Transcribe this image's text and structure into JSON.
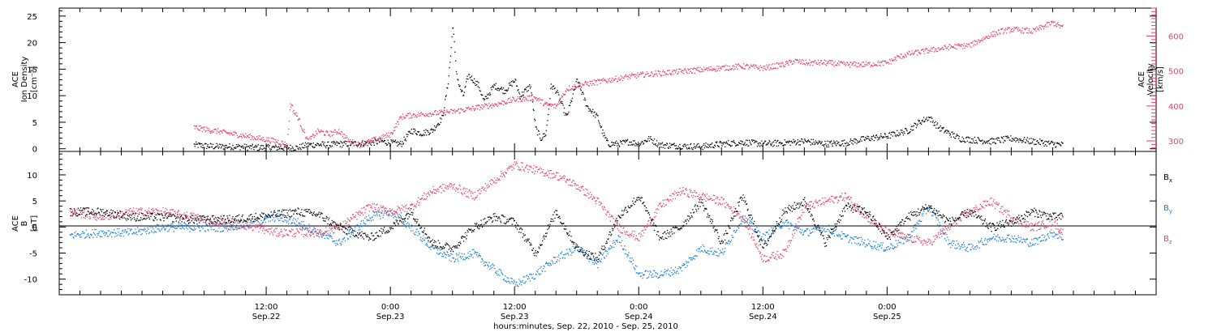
{
  "colors": {
    "axis": "#000000",
    "density": "#000000",
    "velocity": "#e8406a",
    "bx": "#000000",
    "by": "#1a7fd8",
    "bz": "#e8406a"
  },
  "chart_data": [
    {
      "type": "scatter",
      "panel": "plasma",
      "ylabel_left": [
        "ACE",
        "Ion Density",
        "[cm⁻³]"
      ],
      "ylabel_right": [
        "ACE",
        "Velocity",
        "[km/s]"
      ],
      "ylim_left": [
        -0.5,
        26.5
      ],
      "ylim_right": [
        270,
        680
      ],
      "left_ticks": [
        "0",
        "5",
        "10",
        "15",
        "20",
        "25"
      ],
      "right_ticks": [
        "300",
        "400",
        "500",
        "600"
      ],
      "x_unit": "hours since Sep 22 00:00 UT",
      "series": [
        {
          "key": "density",
          "x": [
            5,
            7,
            9,
            11,
            13,
            14,
            15,
            16,
            17,
            18,
            19,
            20,
            22,
            23,
            24,
            25,
            26,
            27,
            28,
            29,
            29.5,
            29.8,
            30,
            30.3,
            30.6,
            31,
            31.5,
            32,
            32.5,
            33,
            34,
            35,
            36,
            36.5,
            37,
            37.5,
            38,
            38.5,
            39,
            39.5,
            40,
            41,
            42,
            43,
            44,
            44.5,
            45,
            46,
            47,
            48,
            49,
            50,
            52,
            54,
            56,
            58,
            60,
            62,
            64,
            66,
            68,
            70,
            72,
            74,
            75,
            76,
            77,
            78,
            79,
            80,
            82,
            84,
            86,
            88,
            89
          ],
          "y": [
            0.8,
            0.5,
            0.5,
            0.3,
            0.3,
            0.3,
            0.3,
            0.8,
            0.9,
            0.8,
            1.0,
            1.0,
            1.2,
            1.5,
            1.2,
            1.0,
            3.5,
            3.0,
            3.5,
            6,
            12,
            18,
            24,
            15,
            12,
            10,
            14,
            13,
            12,
            9,
            12,
            11,
            13,
            10,
            11,
            12,
            4,
            2,
            3,
            12,
            11,
            6,
            13,
            8,
            6,
            3,
            1,
            1.0,
            1.4,
            1.0,
            2.0,
            0.8,
            0.6,
            0.5,
            1.0,
            1.3,
            1.0,
            1.2,
            1.5,
            1.0,
            1.2,
            2.0,
            2.5,
            3.5,
            5,
            6,
            4,
            3,
            2.0,
            1.8,
            1.5,
            2.0,
            1.5,
            1.0,
            0.8
          ]
        },
        {
          "key": "velocity",
          "x": [
            5,
            7,
            9,
            11,
            13,
            14,
            14.3,
            14.7,
            15,
            16,
            17,
            18,
            19,
            20,
            21,
            22,
            23,
            24,
            25,
            26,
            28,
            30,
            32,
            34,
            36,
            38,
            39,
            40,
            41,
            42,
            44,
            46,
            48,
            50,
            52,
            54,
            56,
            58,
            60,
            62,
            63,
            64,
            66,
            68,
            70,
            72,
            73,
            74,
            76,
            78,
            80,
            81,
            82,
            83,
            84,
            86,
            88,
            89
          ],
          "y": [
            340,
            330,
            320,
            310,
            300,
            290,
            410,
            380,
            370,
            300,
            330,
            320,
            330,
            300,
            290,
            300,
            310,
            320,
            370,
            375,
            380,
            385,
            395,
            405,
            420,
            425,
            405,
            400,
            450,
            460,
            470,
            480,
            490,
            495,
            500,
            505,
            510,
            515,
            510,
            520,
            530,
            525,
            525,
            520,
            520,
            525,
            540,
            550,
            560,
            570,
            575,
            590,
            605,
            615,
            620,
            615,
            640,
            625
          ]
        }
      ]
    },
    {
      "type": "scatter",
      "panel": "magnetic",
      "ylabel_left": [
        "ACE",
        "B",
        "[nT]"
      ],
      "ylim": [
        -13,
        14.5
      ],
      "left_ticks": [
        "-10",
        "-5",
        "0",
        "5",
        "10"
      ],
      "legend_placement": "right",
      "legend": [
        {
          "key": "bx",
          "label": "B",
          "sub": "x"
        },
        {
          "key": "by",
          "label": "B",
          "sub": "y"
        },
        {
          "key": "bz",
          "label": "B",
          "sub": "z"
        }
      ],
      "x_unit": "hours since Sep 22 00:00 UT",
      "series": [
        {
          "key": "bx",
          "x": [
            -7,
            -4,
            -1,
            2,
            5,
            8,
            11,
            13,
            15,
            17,
            19,
            22,
            24,
            26,
            28,
            30,
            32,
            34,
            36,
            38,
            40,
            42,
            44,
            46,
            48,
            50,
            52,
            54,
            56,
            58,
            60,
            62,
            64,
            66,
            68,
            70,
            72,
            74,
            76,
            78,
            80,
            82,
            84,
            86,
            88,
            89
          ],
          "y": [
            3,
            3,
            2,
            2,
            1.5,
            1.5,
            2,
            2.5,
            3,
            2.5,
            0,
            -2,
            0,
            3,
            -3,
            -4,
            0,
            2,
            1,
            -5,
            3,
            -4,
            -6,
            2,
            6,
            -2,
            0,
            5,
            -3,
            6,
            -4,
            3,
            5,
            -3,
            4,
            3,
            -2,
            2,
            4,
            1,
            3,
            0,
            1,
            3,
            2,
            2
          ]
        },
        {
          "key": "by",
          "x": [
            -7,
            -4,
            -1,
            2,
            5,
            8,
            11,
            13,
            15,
            17,
            19,
            22,
            24,
            26,
            28,
            30,
            32,
            34,
            36,
            38,
            40,
            42,
            44,
            46,
            48,
            50,
            52,
            54,
            56,
            58,
            60,
            62,
            64,
            66,
            68,
            70,
            72,
            74,
            76,
            78,
            80,
            82,
            84,
            86,
            88,
            89
          ],
          "y": [
            -1.5,
            -1,
            -1,
            0,
            0,
            0,
            1,
            2,
            1,
            -1,
            -3,
            2,
            3,
            0,
            -4,
            -6,
            -5,
            -8,
            -11,
            -9,
            -6,
            -4,
            -7,
            -2,
            -9,
            -9,
            -8,
            -4,
            -5,
            2,
            -2,
            1,
            -1,
            0,
            -2,
            -3,
            -4,
            -2,
            4,
            -3,
            -4,
            -2,
            -2,
            -3,
            -1,
            -2
          ]
        },
        {
          "key": "bz",
          "x": [
            -7,
            -4,
            -1,
            2,
            5,
            8,
            11,
            13,
            15,
            17,
            19,
            22,
            24,
            26,
            28,
            30,
            32,
            34,
            36,
            38,
            40,
            42,
            44,
            46,
            48,
            50,
            52,
            54,
            56,
            58,
            60,
            62,
            64,
            66,
            68,
            70,
            72,
            74,
            76,
            78,
            80,
            82,
            84,
            86,
            88,
            89
          ],
          "y": [
            3,
            2,
            3,
            3,
            2,
            1,
            0,
            -1,
            -1,
            -1,
            0,
            4,
            3,
            4,
            7,
            8,
            6,
            9,
            12,
            11,
            10,
            8,
            5,
            0,
            -2,
            4,
            7,
            6,
            5,
            2,
            -6,
            -5,
            4,
            5,
            6,
            2,
            -1,
            -2,
            -3,
            0,
            3,
            5,
            2,
            0,
            1,
            -1
          ]
        }
      ]
    }
  ],
  "x_axis": {
    "xlim": [
      -8,
      98
    ],
    "ticks": [
      {
        "x": 12,
        "time": "12:00",
        "date": "Sep.22"
      },
      {
        "x": 24,
        "time": "0:00",
        "date": "Sep.23"
      },
      {
        "x": 36,
        "time": "12:00",
        "date": "Sep.23"
      },
      {
        "x": 48,
        "time": "0:00",
        "date": "Sep.24"
      },
      {
        "x": 60,
        "time": "12:00",
        "date": "Sep.24"
      },
      {
        "x": 72,
        "time": "0:00",
        "date": "Sep.25"
      }
    ],
    "xlabel": "hours:minutes, Sep. 22, 2010 - Sep. 25, 2010"
  }
}
